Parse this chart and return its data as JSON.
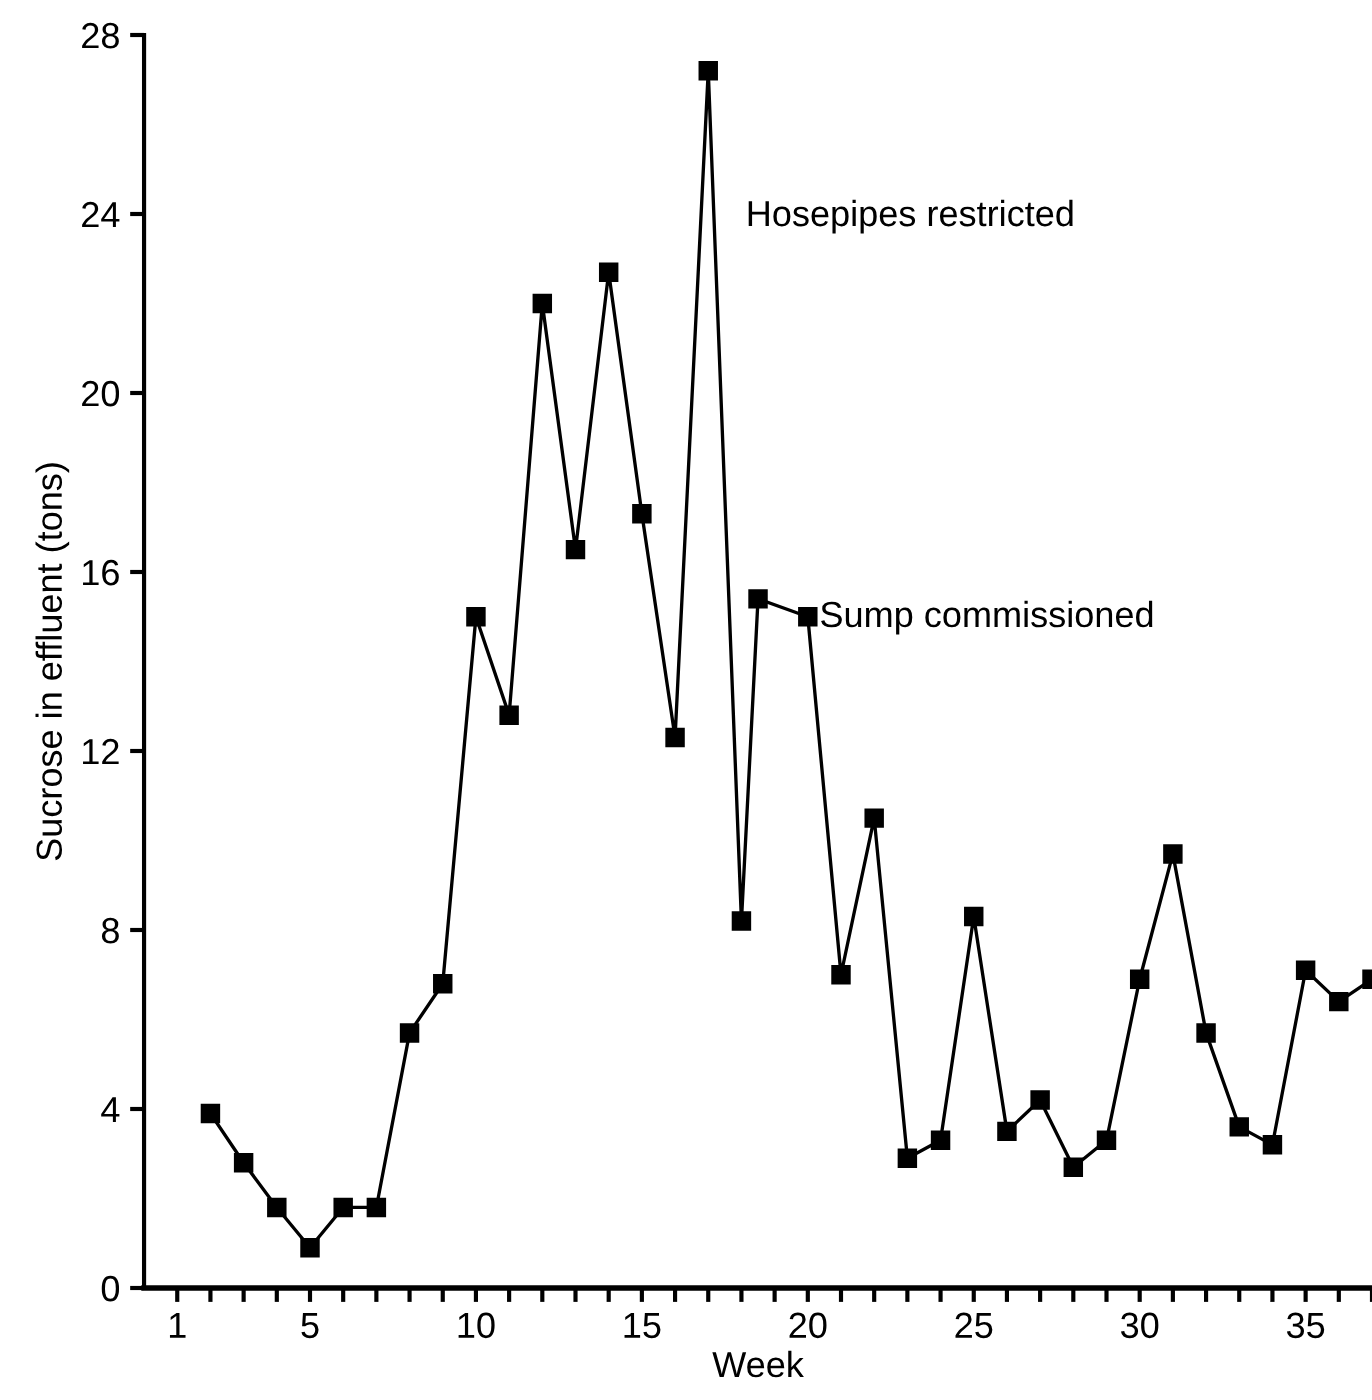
{
  "chart_data": {
    "type": "line",
    "xlabel": "Week",
    "ylabel": "Sucrose in effluent (tons)",
    "x": [
      2,
      3,
      4,
      5,
      6,
      7,
      8,
      9,
      10,
      11,
      12,
      13,
      14,
      15,
      16,
      17,
      18,
      18.5,
      20,
      21,
      22,
      23,
      24,
      25,
      26,
      27,
      28,
      29,
      30,
      31,
      32,
      33,
      34,
      35,
      36,
      37
    ],
    "series": [
      {
        "color": "#000000",
        "values": [
          3.9,
          2.8,
          1.8,
          0.9,
          1.8,
          1.8,
          5.7,
          6.8,
          15.0,
          12.8,
          22.0,
          16.5,
          22.7,
          17.3,
          12.3,
          27.2,
          8.2,
          15.4,
          15.0,
          7.0,
          10.5,
          2.9,
          3.3,
          8.3,
          3.5,
          4.2,
          2.7,
          3.3,
          6.9,
          9.7,
          5.7,
          3.6,
          3.2,
          7.1,
          6.4,
          6.9
        ]
      }
    ],
    "marker": "square",
    "line_style": "solid",
    "grid": false,
    "legend": false,
    "xlim": [
      0,
      37
    ],
    "ylim": [
      0,
      28
    ],
    "xticks": [
      1,
      {
        "value": 2,
        "label": null
      },
      {
        "value": 3,
        "label": null
      },
      {
        "value": 4,
        "label": null
      },
      5,
      {
        "value": 6,
        "label": null
      },
      {
        "value": 7,
        "label": null
      },
      {
        "value": 8,
        "label": null
      },
      {
        "value": 9,
        "label": null
      },
      10,
      {
        "value": 11,
        "label": null
      },
      {
        "value": 12,
        "label": null
      },
      {
        "value": 13,
        "label": null
      },
      {
        "value": 14,
        "label": null
      },
      15,
      {
        "value": 16,
        "label": null
      },
      {
        "value": 17,
        "label": null
      },
      {
        "value": 18,
        "label": null
      },
      {
        "value": 19,
        "label": null
      },
      20,
      {
        "value": 21,
        "label": null
      },
      {
        "value": 22,
        "label": null
      },
      {
        "value": 23,
        "label": null
      },
      {
        "value": 24,
        "label": null
      },
      25,
      {
        "value": 26,
        "label": null
      },
      {
        "value": 27,
        "label": null
      },
      {
        "value": 28,
        "label": null
      },
      {
        "value": 29,
        "label": null
      },
      30,
      {
        "value": 31,
        "label": null
      },
      {
        "value": 32,
        "label": null
      },
      {
        "value": 33,
        "label": null
      },
      {
        "value": 34,
        "label": null
      },
      35,
      {
        "value": 36,
        "label": null
      },
      {
        "value": 37,
        "label": null
      }
    ],
    "yticks": [
      0,
      4,
      8,
      12,
      16,
      20,
      24,
      28
    ],
    "annotations": [
      "Hosepipes restricted",
      "Sump commissioned"
    ]
  }
}
